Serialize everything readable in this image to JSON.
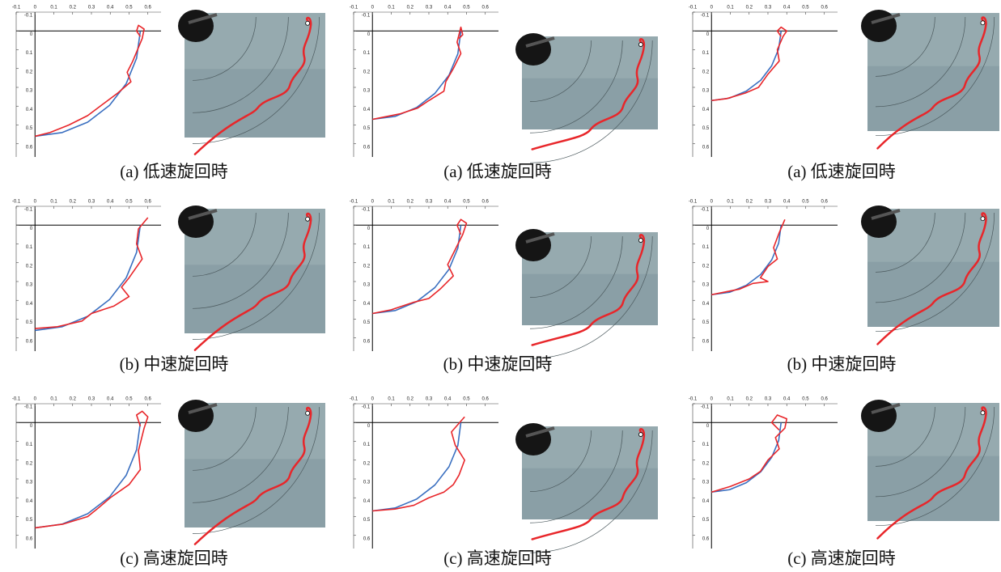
{
  "panels": [
    {
      "caption": "(a)  低速旋回時",
      "chart_data": {
        "type": "line",
        "xlim": [
          -0.1,
          0.67
        ],
        "ylim": [
          -0.1,
          0.67
        ],
        "y_inverted": true,
        "xticks": [
          -0.1,
          0,
          0.1,
          0.2,
          0.3,
          0.4,
          0.5,
          0.6
        ],
        "yticks": [
          -0.1,
          0,
          0.1,
          0.2,
          0.3,
          0.4,
          0.5,
          0.6
        ],
        "series": [
          {
            "color": "#3a6fc0",
            "x": [
              0.56,
              0.54,
              0.485,
              0.396,
              0.28,
              0.145,
              0
            ],
            "y": [
              0,
              0.145,
              0.28,
              0.396,
              0.485,
              0.54,
              0.56
            ]
          },
          {
            "color": "#e8262a",
            "x": [
              0.56,
              0.54,
              0.55,
              0.58,
              0.57,
              0.52,
              0.49,
              0.51,
              0.44,
              0.36,
              0.28,
              0.18,
              0.08,
              0
            ],
            "y": [
              0.03,
              0.0,
              -0.03,
              -0.01,
              0.04,
              0.16,
              0.22,
              0.27,
              0.33,
              0.39,
              0.45,
              0.5,
              0.54,
              0.56
            ]
          }
        ]
      }
    },
    {
      "caption": "(a)  低速旋回時",
      "chart_data": {
        "type": "line",
        "xlim": [
          -0.1,
          0.67
        ],
        "ylim": [
          -0.1,
          0.67
        ],
        "y_inverted": true,
        "xticks": [
          -0.1,
          0,
          0.1,
          0.2,
          0.3,
          0.4,
          0.5,
          0.6
        ],
        "yticks": [
          -0.1,
          0,
          0.1,
          0.2,
          0.3,
          0.4,
          0.5,
          0.6
        ],
        "series": [
          {
            "color": "#3a6fc0",
            "x": [
              0.47,
              0.454,
              0.407,
              0.332,
              0.235,
              0.122,
              0
            ],
            "y": [
              0,
              0.122,
              0.235,
              0.332,
              0.407,
              0.454,
              0.47
            ]
          },
          {
            "color": "#e8262a",
            "x": [
              0.46,
              0.48,
              0.47,
              0.45,
              0.47,
              0.43,
              0.39,
              0.38,
              0.3,
              0.24,
              0.15,
              0.05,
              0
            ],
            "y": [
              0.04,
              0.02,
              -0.02,
              0.06,
              0.12,
              0.2,
              0.27,
              0.32,
              0.37,
              0.41,
              0.44,
              0.46,
              0.47
            ]
          }
        ]
      }
    },
    {
      "caption": "(a)  低速旋回時",
      "chart_data": {
        "type": "line",
        "xlim": [
          -0.1,
          0.67
        ],
        "ylim": [
          -0.1,
          0.67
        ],
        "y_inverted": true,
        "xticks": [
          -0.1,
          0,
          0.1,
          0.2,
          0.3,
          0.4,
          0.5,
          0.6
        ],
        "yticks": [
          -0.1,
          0,
          0.1,
          0.2,
          0.3,
          0.4,
          0.5,
          0.6
        ],
        "series": [
          {
            "color": "#3a6fc0",
            "x": [
              0.37,
              0.357,
              0.32,
              0.262,
              0.185,
              0.096,
              0
            ],
            "y": [
              0,
              0.096,
              0.185,
              0.262,
              0.32,
              0.357,
              0.37
            ]
          },
          {
            "color": "#e8262a",
            "x": [
              0.37,
              0.35,
              0.37,
              0.4,
              0.38,
              0.35,
              0.36,
              0.3,
              0.25,
              0.18,
              0.08,
              0
            ],
            "y": [
              0.03,
              0.0,
              -0.02,
              0,
              0.03,
              0.1,
              0.16,
              0.23,
              0.3,
              0.33,
              0.36,
              0.37
            ]
          }
        ]
      }
    },
    {
      "caption": "(b)  中速旋回時",
      "chart_data": {
        "type": "line",
        "xlim": [
          -0.1,
          0.67
        ],
        "ylim": [
          -0.1,
          0.67
        ],
        "y_inverted": true,
        "xticks": [
          -0.1,
          0,
          0.1,
          0.2,
          0.3,
          0.4,
          0.5,
          0.6
        ],
        "yticks": [
          -0.1,
          0,
          0.1,
          0.2,
          0.3,
          0.4,
          0.5,
          0.6
        ],
        "series": [
          {
            "color": "#3a6fc0",
            "x": [
              0.56,
              0.54,
              0.485,
              0.396,
              0.28,
              0.145,
              0
            ],
            "y": [
              0,
              0.145,
              0.28,
              0.396,
              0.485,
              0.54,
              0.56
            ]
          },
          {
            "color": "#e8262a",
            "x": [
              0.6,
              0.55,
              0.54,
              0.57,
              0.5,
              0.46,
              0.5,
              0.42,
              0.3,
              0.25,
              0.12,
              0
            ],
            "y": [
              -0.04,
              0.02,
              0.1,
              0.18,
              0.28,
              0.33,
              0.38,
              0.43,
              0.47,
              0.51,
              0.54,
              0.55
            ]
          }
        ]
      }
    },
    {
      "caption": "(b)  中速旋回時",
      "chart_data": {
        "type": "line",
        "xlim": [
          -0.1,
          0.67
        ],
        "ylim": [
          -0.1,
          0.67
        ],
        "y_inverted": true,
        "xticks": [
          -0.1,
          0,
          0.1,
          0.2,
          0.3,
          0.4,
          0.5,
          0.6
        ],
        "yticks": [
          -0.1,
          0,
          0.1,
          0.2,
          0.3,
          0.4,
          0.5,
          0.6
        ],
        "series": [
          {
            "color": "#3a6fc0",
            "x": [
              0.47,
              0.454,
              0.407,
              0.332,
              0.235,
              0.122,
              0
            ],
            "y": [
              0,
              0.122,
              0.235,
              0.332,
              0.407,
              0.454,
              0.47
            ]
          },
          {
            "color": "#e8262a",
            "x": [
              0.47,
              0.45,
              0.47,
              0.5,
              0.48,
              0.44,
              0.4,
              0.43,
              0.36,
              0.3,
              0.22,
              0.1,
              0
            ],
            "y": [
              0.05,
              0.0,
              -0.03,
              -0.01,
              0.05,
              0.13,
              0.21,
              0.27,
              0.34,
              0.39,
              0.41,
              0.45,
              0.47
            ]
          }
        ]
      }
    },
    {
      "caption": "(b)  中速旋回時",
      "chart_data": {
        "type": "line",
        "xlim": [
          -0.1,
          0.67
        ],
        "ylim": [
          -0.1,
          0.67
        ],
        "y_inverted": true,
        "xticks": [
          -0.1,
          0,
          0.1,
          0.2,
          0.3,
          0.4,
          0.5,
          0.6
        ],
        "yticks": [
          -0.1,
          0,
          0.1,
          0.2,
          0.3,
          0.4,
          0.5,
          0.6
        ],
        "series": [
          {
            "color": "#3a6fc0",
            "x": [
              0.37,
              0.357,
              0.32,
              0.262,
              0.185,
              0.096,
              0
            ],
            "y": [
              0,
              0.096,
              0.185,
              0.262,
              0.32,
              0.357,
              0.37
            ]
          },
          {
            "color": "#e8262a",
            "x": [
              0.39,
              0.36,
              0.33,
              0.35,
              0.3,
              0.26,
              0.3,
              0.22,
              0.15,
              0.05,
              0
            ],
            "y": [
              -0.03,
              0.04,
              0.12,
              0.18,
              0.22,
              0.28,
              0.3,
              0.31,
              0.34,
              0.36,
              0.37
            ]
          }
        ]
      }
    },
    {
      "caption": "(c)  高速旋回時",
      "chart_data": {
        "type": "line",
        "xlim": [
          -0.1,
          0.67
        ],
        "ylim": [
          -0.1,
          0.67
        ],
        "y_inverted": true,
        "xticks": [
          -0.1,
          0,
          0.1,
          0.2,
          0.3,
          0.4,
          0.5,
          0.6
        ],
        "yticks": [
          -0.1,
          0,
          0.1,
          0.2,
          0.3,
          0.4,
          0.5,
          0.6
        ],
        "series": [
          {
            "color": "#3a6fc0",
            "x": [
              0.56,
              0.54,
              0.485,
              0.396,
              0.28,
              0.145,
              0
            ],
            "y": [
              0,
              0.145,
              0.28,
              0.396,
              0.485,
              0.54,
              0.56
            ]
          },
          {
            "color": "#e8262a",
            "x": [
              0.56,
              0.54,
              0.57,
              0.6,
              0.58,
              0.55,
              0.56,
              0.5,
              0.4,
              0.33,
              0.28,
              0.15,
              0
            ],
            "y": [
              0.02,
              -0.04,
              -0.06,
              -0.03,
              0.03,
              0.15,
              0.25,
              0.33,
              0.4,
              0.46,
              0.5,
              0.54,
              0.56
            ]
          }
        ]
      }
    },
    {
      "caption": "(c)  高速旋回時",
      "chart_data": {
        "type": "line",
        "xlim": [
          -0.1,
          0.67
        ],
        "ylim": [
          -0.1,
          0.67
        ],
        "y_inverted": true,
        "xticks": [
          -0.1,
          0,
          0.1,
          0.2,
          0.3,
          0.4,
          0.5,
          0.6
        ],
        "yticks": [
          -0.1,
          0,
          0.1,
          0.2,
          0.3,
          0.4,
          0.5,
          0.6
        ],
        "series": [
          {
            "color": "#3a6fc0",
            "x": [
              0.47,
              0.454,
              0.407,
              0.332,
              0.235,
              0.122,
              0
            ],
            "y": [
              0,
              0.122,
              0.235,
              0.332,
              0.407,
              0.454,
              0.47
            ]
          },
          {
            "color": "#e8262a",
            "x": [
              0.49,
              0.42,
              0.44,
              0.49,
              0.46,
              0.43,
              0.38,
              0.3,
              0.22,
              0.12,
              0
            ],
            "y": [
              -0.03,
              0.05,
              0.12,
              0.2,
              0.28,
              0.33,
              0.37,
              0.4,
              0.44,
              0.46,
              0.47
            ]
          }
        ]
      }
    },
    {
      "caption": "(c)  高速旋回時",
      "chart_data": {
        "type": "line",
        "xlim": [
          -0.1,
          0.67
        ],
        "ylim": [
          -0.1,
          0.67
        ],
        "y_inverted": true,
        "xticks": [
          -0.1,
          0,
          0.1,
          0.2,
          0.3,
          0.4,
          0.5,
          0.6
        ],
        "yticks": [
          -0.1,
          0,
          0.1,
          0.2,
          0.3,
          0.4,
          0.5,
          0.6
        ],
        "series": [
          {
            "color": "#3a6fc0",
            "x": [
              0.37,
              0.357,
              0.32,
              0.262,
              0.185,
              0.096,
              0
            ],
            "y": [
              0,
              0.096,
              0.185,
              0.262,
              0.32,
              0.357,
              0.37
            ]
          },
          {
            "color": "#e8262a",
            "x": [
              0.36,
              0.32,
              0.35,
              0.4,
              0.39,
              0.34,
              0.36,
              0.3,
              0.26,
              0.2,
              0.1,
              0
            ],
            "y": [
              0.04,
              0.0,
              -0.04,
              -0.02,
              0.03,
              0.08,
              0.14,
              0.2,
              0.26,
              0.3,
              0.34,
              0.37
            ]
          }
        ]
      }
    }
  ]
}
